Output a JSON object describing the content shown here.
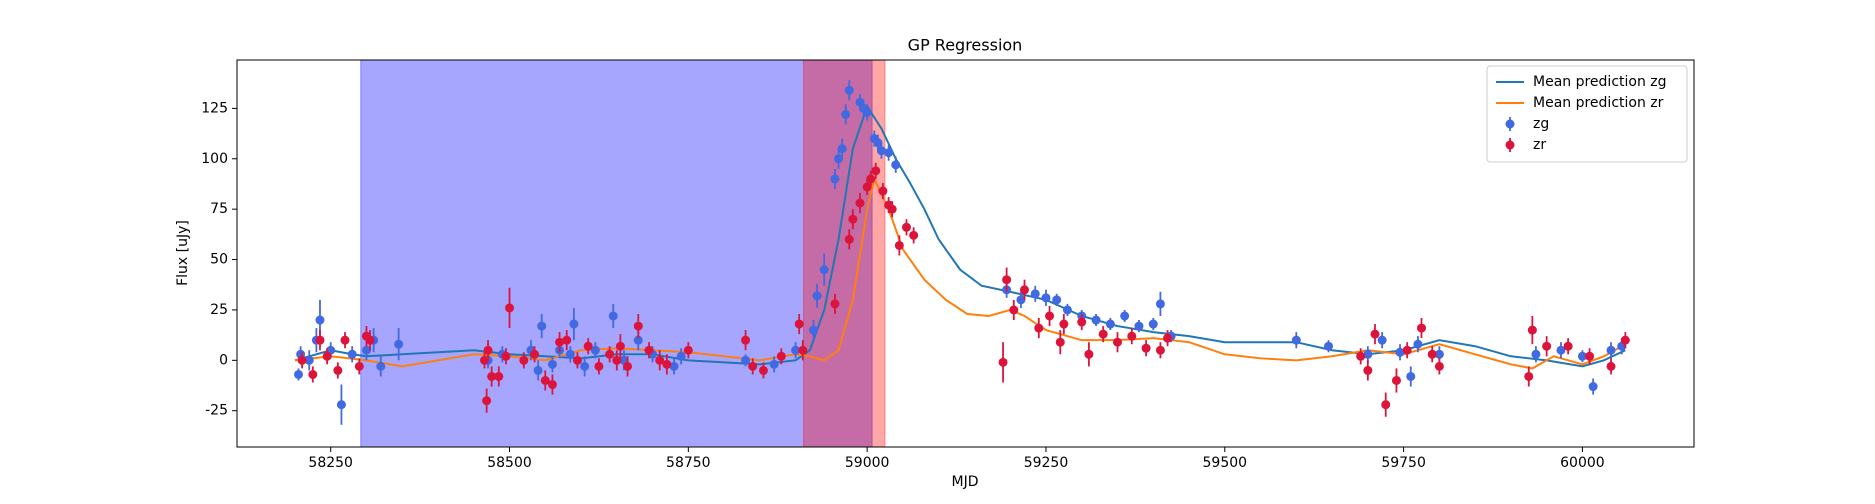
{
  "chart_data": {
    "type": "line",
    "title": "GP Regression",
    "x_label": "MJD",
    "y_label": "Flux [uJy]",
    "xlim": [
      58119,
      60156
    ],
    "ylim": [
      -43,
      149
    ],
    "xticks": [
      58250,
      58500,
      58750,
      59000,
      59250,
      59500,
      59750,
      60000
    ],
    "yticks": [
      -25,
      0,
      25,
      50,
      75,
      100,
      125
    ],
    "legend": "upper right",
    "spans": [
      {
        "x": [
          58292,
          59007
        ],
        "color": "#0000ff"
      },
      {
        "x": [
          58911,
          59025
        ],
        "color": "#ff0000"
      }
    ],
    "series": [
      {
        "name": "Mean prediction zg",
        "kind": "line",
        "color": "#1f77b4",
        "x": [
          58200,
          58250,
          58280,
          58300,
          58350,
          58400,
          58450,
          58500,
          58550,
          58600,
          58650,
          58700,
          58750,
          58800,
          58850,
          58900,
          58920,
          58940,
          58960,
          58980,
          59000,
          59020,
          59040,
          59060,
          59080,
          59100,
          59130,
          59160,
          59200,
          59250,
          59300,
          59350,
          59400,
          59450,
          59500,
          59550,
          59600,
          59650,
          59700,
          59750,
          59800,
          59850,
          59900,
          59950,
          60000,
          60030,
          60060
        ],
        "values": [
          0,
          5,
          3,
          2,
          3,
          4,
          5,
          3,
          2,
          1,
          3,
          3,
          0,
          -1,
          -2,
          0,
          5,
          25,
          60,
          105,
          126,
          115,
          100,
          88,
          75,
          60,
          45,
          37,
          34,
          30,
          22,
          17,
          14,
          12,
          9,
          9,
          9,
          5,
          3,
          5,
          10,
          7,
          2,
          0,
          -3,
          0,
          5
        ]
      },
      {
        "name": "Mean prediction zr",
        "kind": "line",
        "color": "#ff7f0e",
        "x": [
          58200,
          58250,
          58300,
          58350,
          58400,
          58450,
          58500,
          58550,
          58600,
          58650,
          58700,
          58750,
          58800,
          58850,
          58900,
          58920,
          58940,
          58960,
          58980,
          59000,
          59010,
          59030,
          59050,
          59080,
          59110,
          59140,
          59170,
          59200,
          59220,
          59250,
          59300,
          59350,
          59400,
          59450,
          59500,
          59550,
          59600,
          59650,
          59700,
          59750,
          59800,
          59850,
          59900,
          59930,
          59960,
          60000,
          60030,
          60060
        ],
        "values": [
          0,
          2,
          0,
          -3,
          0,
          3,
          2,
          0,
          5,
          6,
          5,
          4,
          2,
          0,
          3,
          2,
          0,
          5,
          30,
          75,
          90,
          75,
          55,
          40,
          30,
          23,
          22,
          25,
          22,
          15,
          10,
          10,
          11,
          9,
          3,
          1,
          0,
          2,
          5,
          3,
          8,
          3,
          -2,
          -4,
          2,
          -2,
          2,
          8
        ]
      },
      {
        "name": "zg",
        "kind": "errorbar",
        "color": "#4169e1",
        "x": [
          58205,
          58208,
          58220,
          58230,
          58235,
          58250,
          58265,
          58280,
          58300,
          58310,
          58320,
          58345,
          58470,
          58490,
          58530,
          58540,
          58545,
          58560,
          58570,
          58585,
          58590,
          58605,
          58620,
          58645,
          58660,
          58680,
          58700,
          58730,
          58740,
          58830,
          58870,
          58900,
          58925,
          58930,
          58940,
          58955,
          58960,
          58965,
          58970,
          58975,
          58990,
          58995,
          59000,
          59010,
          59015,
          59020,
          59030,
          59040,
          59195,
          59215,
          59235,
          59250,
          59265,
          59280,
          59300,
          59320,
          59340,
          59360,
          59380,
          59400,
          59410,
          59425,
          59600,
          59645,
          59700,
          59720,
          59745,
          59760,
          59770,
          59800,
          59935,
          59970,
          60000,
          60015,
          60040,
          60055
        ],
        "values": [
          -7,
          3,
          0,
          10,
          20,
          5,
          -22,
          3,
          5,
          10,
          -3,
          8,
          0,
          3,
          5,
          -5,
          17,
          -2,
          5,
          3,
          18,
          -3,
          5,
          22,
          0,
          10,
          3,
          -3,
          2,
          0,
          -2,
          5,
          15,
          32,
          45,
          90,
          100,
          105,
          122,
          134,
          128,
          125,
          123,
          110,
          108,
          104,
          103,
          97,
          35,
          30,
          33,
          31,
          30,
          25,
          22,
          20,
          18,
          22,
          17,
          18,
          28,
          12,
          10,
          7,
          3,
          10,
          4,
          -8,
          8,
          3,
          3,
          5,
          2,
          -13,
          5,
          7
        ],
        "errors": [
          3,
          4,
          5,
          6,
          10,
          4,
          10,
          4,
          5,
          6,
          5,
          8,
          4,
          4,
          5,
          5,
          6,
          4,
          4,
          4,
          8,
          5,
          4,
          6,
          5,
          5,
          4,
          4,
          4,
          3,
          4,
          4,
          5,
          6,
          8,
          5,
          5,
          5,
          5,
          5,
          4,
          4,
          4,
          4,
          4,
          4,
          4,
          4,
          4,
          4,
          4,
          4,
          3,
          3,
          3,
          3,
          3,
          3,
          3,
          3,
          6,
          3,
          4,
          3,
          4,
          4,
          4,
          5,
          4,
          4,
          4,
          4,
          3,
          4,
          4,
          4
        ]
      },
      {
        "name": "zr",
        "kind": "errorbar",
        "color": "#dc143c",
        "x": [
          58210,
          58225,
          58235,
          58245,
          58260,
          58270,
          58290,
          58300,
          58305,
          58465,
          58468,
          58470,
          58475,
          58485,
          58495,
          58500,
          58520,
          58535,
          58550,
          58560,
          58570,
          58580,
          58595,
          58610,
          58625,
          58640,
          58650,
          58655,
          58665,
          58680,
          58695,
          58710,
          58720,
          58750,
          58830,
          58840,
          58855,
          58880,
          58905,
          58910,
          58955,
          58975,
          58980,
          58990,
          59000,
          59005,
          59012,
          59022,
          59030,
          59035,
          59045,
          59055,
          59065,
          59190,
          59195,
          59205,
          59220,
          59240,
          59255,
          59270,
          59275,
          59300,
          59310,
          59330,
          59350,
          59370,
          59390,
          59410,
          59420,
          59690,
          59700,
          59710,
          59725,
          59740,
          59755,
          59775,
          59790,
          59800,
          59925,
          59930,
          59950,
          59980,
          60010,
          60040,
          60060
        ],
        "values": [
          0,
          -7,
          10,
          2,
          -5,
          10,
          -3,
          12,
          10,
          0,
          -20,
          5,
          -8,
          -8,
          2,
          26,
          0,
          3,
          -10,
          -12,
          9,
          10,
          0,
          7,
          -3,
          3,
          0,
          7,
          -3,
          17,
          5,
          0,
          -2,
          5,
          10,
          -3,
          -5,
          2,
          18,
          5,
          28,
          60,
          70,
          78,
          86,
          90,
          94,
          84,
          77,
          75,
          57,
          66,
          62,
          -1,
          40,
          25,
          35,
          16,
          22,
          9,
          18,
          19,
          3,
          13,
          9,
          12,
          6,
          5,
          11,
          2,
          -5,
          13,
          -22,
          -10,
          5,
          16,
          3,
          -3,
          -8,
          15,
          7,
          7,
          2,
          -3,
          10
        ],
        "errors": [
          4,
          4,
          5,
          4,
          4,
          4,
          4,
          5,
          5,
          4,
          6,
          5,
          5,
          5,
          4,
          10,
          4,
          4,
          5,
          5,
          5,
          5,
          4,
          4,
          4,
          4,
          5,
          6,
          5,
          6,
          4,
          5,
          5,
          4,
          5,
          4,
          4,
          4,
          5,
          5,
          5,
          5,
          5,
          5,
          4,
          4,
          4,
          4,
          4,
          4,
          5,
          4,
          4,
          10,
          6,
          5,
          5,
          5,
          5,
          6,
          5,
          4,
          6,
          4,
          5,
          4,
          4,
          4,
          4,
          4,
          5,
          5,
          6,
          6,
          4,
          5,
          4,
          4,
          5,
          7,
          5,
          4,
          4,
          4,
          4
        ]
      }
    ]
  }
}
